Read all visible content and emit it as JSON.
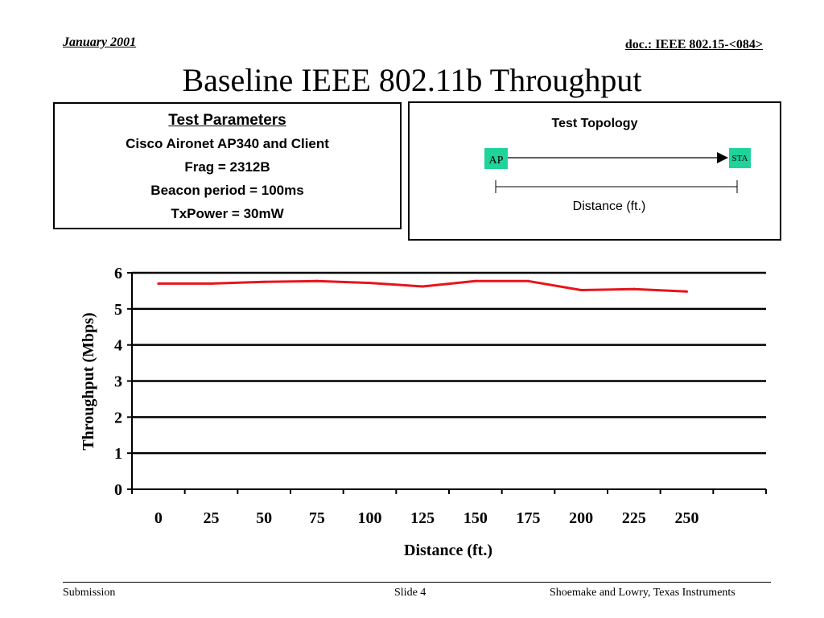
{
  "header": {
    "date": "January 2001",
    "doc": "doc.: IEEE 802.15-<084>"
  },
  "title": "Baseline IEEE 802.11b Throughput",
  "test_parameters": {
    "heading": "Test Parameters",
    "lines": [
      "Cisco Aironet AP340 and Client",
      "Frag = 2312B",
      "Beacon period = 100ms",
      "TxPower = 30mW"
    ]
  },
  "test_topology": {
    "heading": "Test Topology",
    "ap_label": "AP",
    "sta_label": "STA",
    "distance_label": "Distance (ft.)",
    "node_color": "#1fd39a"
  },
  "chart_data": {
    "type": "line",
    "title": "",
    "xlabel": "Distance (ft.)",
    "ylabel": "Throughput (Mbps)",
    "categories": [
      "0",
      "25",
      "50",
      "75",
      "100",
      "125",
      "150",
      "175",
      "200",
      "225",
      "250"
    ],
    "series": [
      {
        "color": "#e8141b",
        "values": [
          5.7,
          5.7,
          5.75,
          5.77,
          5.72,
          5.62,
          5.77,
          5.77,
          5.52,
          5.55,
          5.48
        ]
      }
    ],
    "ylim": [
      0,
      6
    ],
    "yticks": [
      0,
      1,
      2,
      3,
      4,
      5,
      6
    ],
    "grid": true,
    "legend": "none"
  },
  "footer": {
    "left": "Submission",
    "center": "Slide 4",
    "right": "Shoemake and Lowry, Texas Instruments"
  }
}
